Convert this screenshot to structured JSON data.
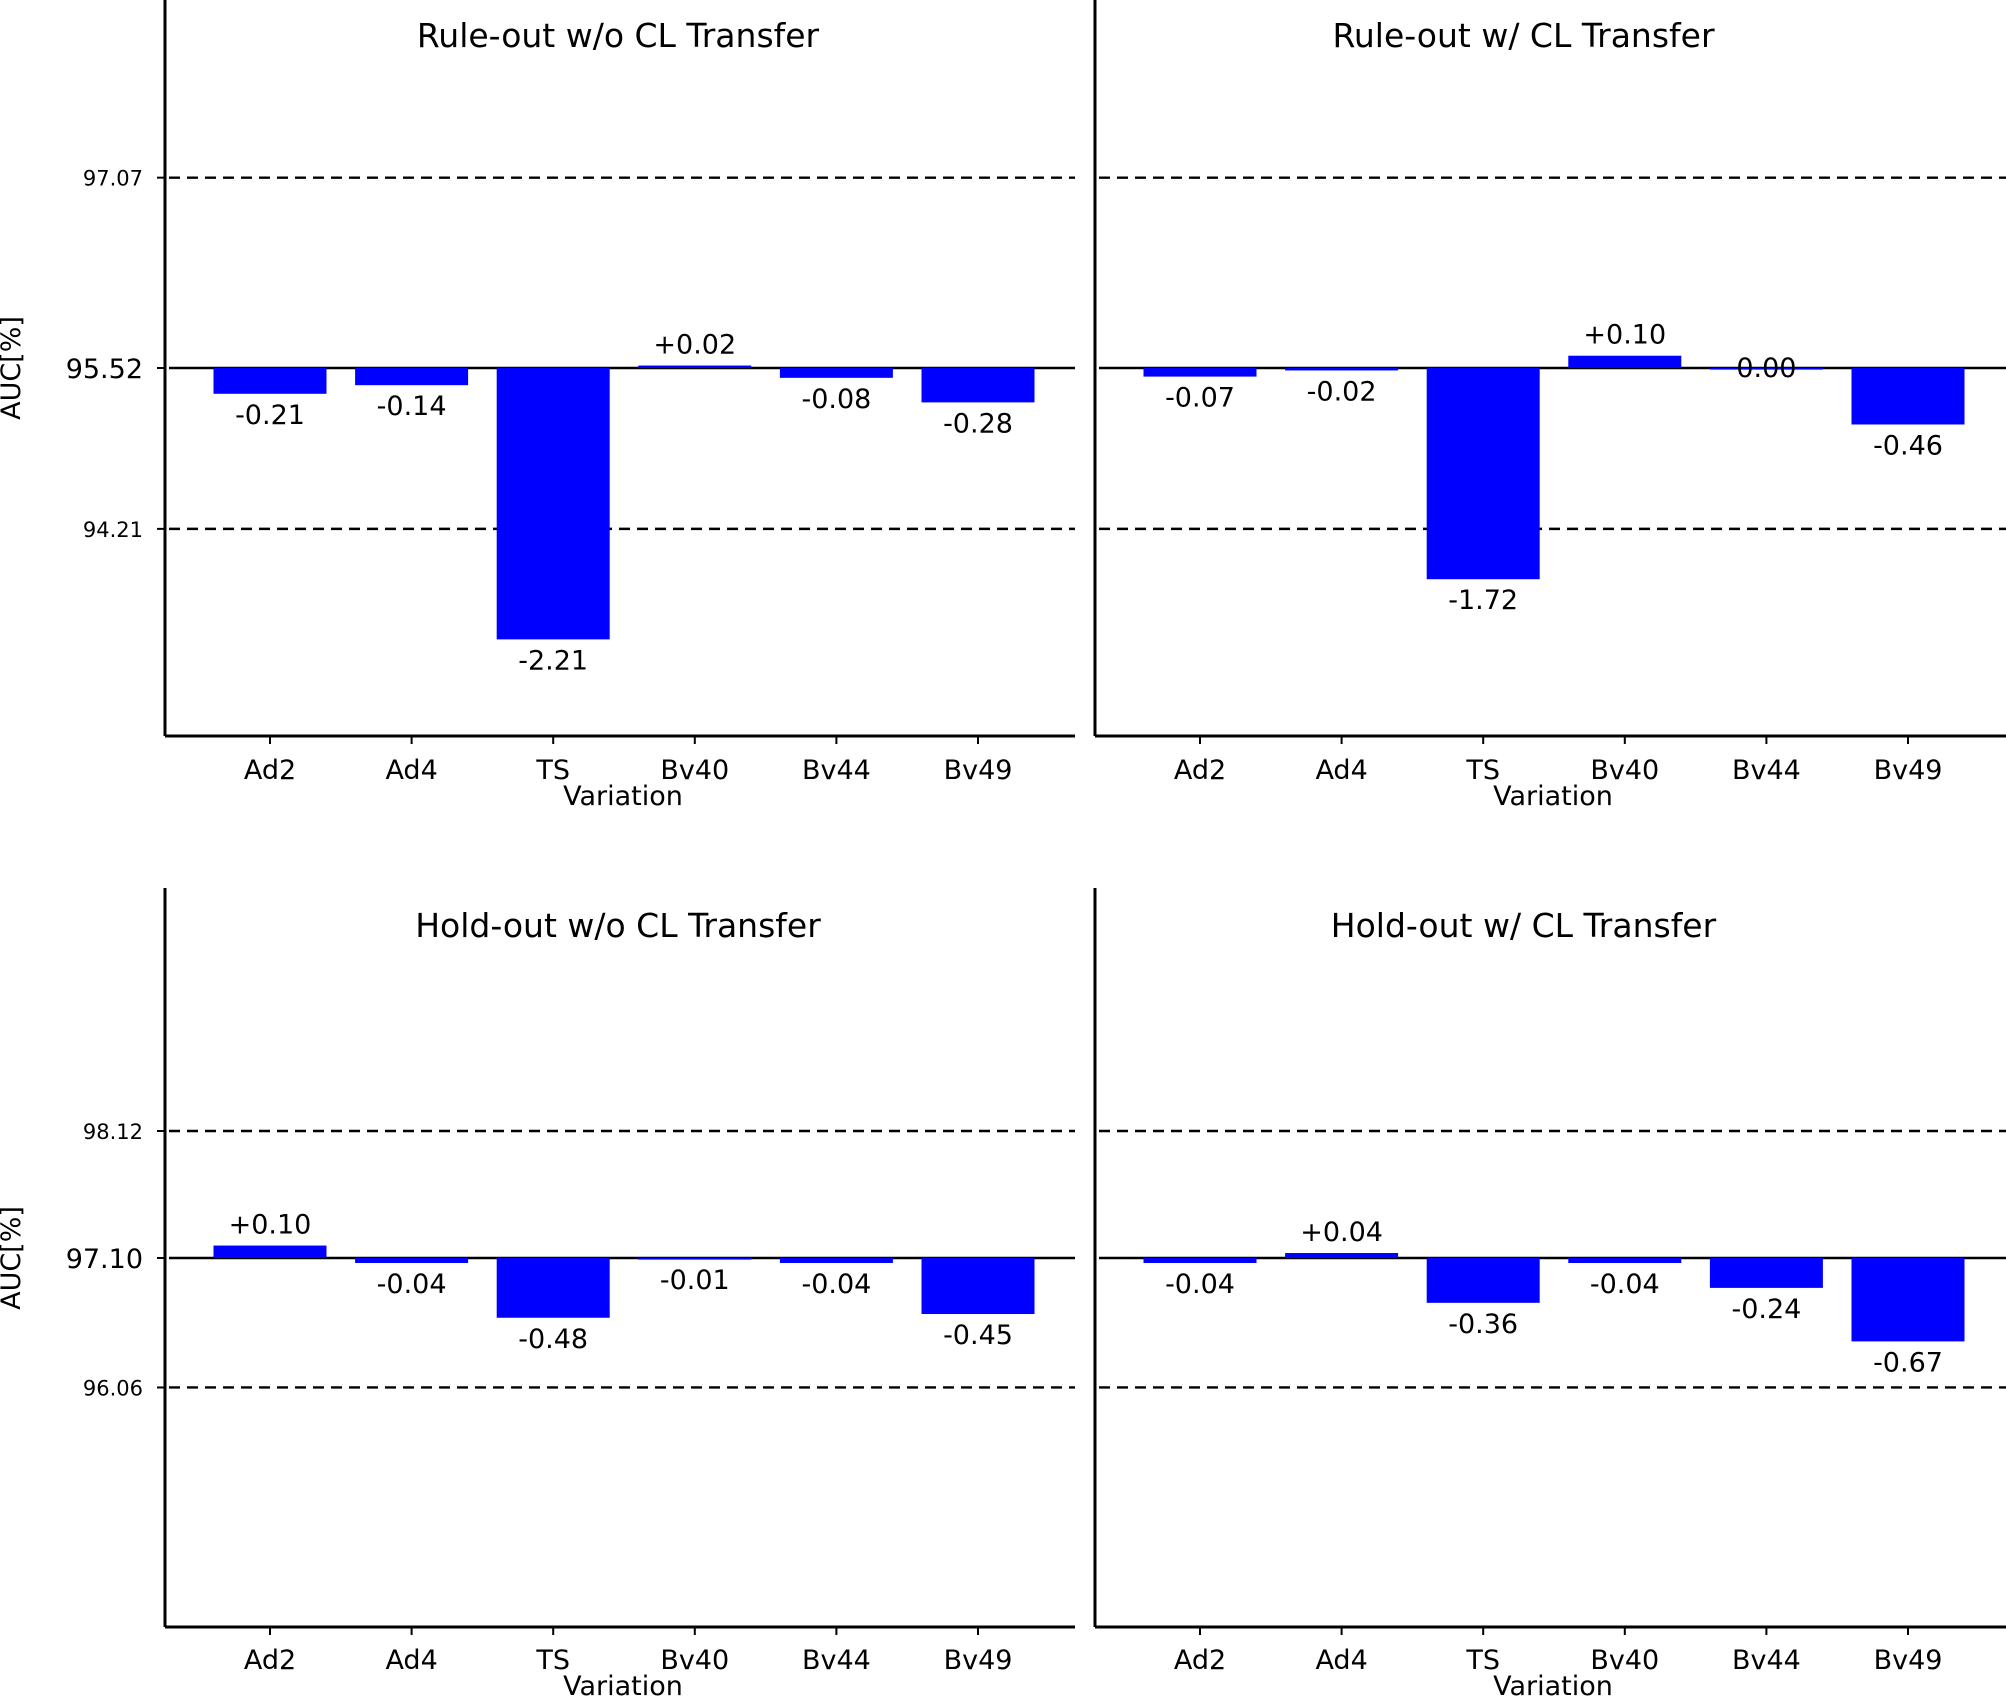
{
  "chart_data": [
    {
      "type": "bar",
      "title": "Rule-out w/o CL Transfer",
      "xlabel": "Variation",
      "ylabel": "AUC[%]",
      "baseline": 95.52,
      "baseline_label": "95.52",
      "reference_lines": [
        97.07,
        94.21
      ],
      "reference_labels": [
        "97.07",
        "94.21"
      ],
      "categories": [
        "Ad2",
        "Ad4",
        "TS",
        "Bv40",
        "Bv44",
        "Bv49"
      ],
      "values": [
        -0.21,
        -0.14,
        -2.21,
        0.02,
        -0.08,
        -0.28
      ],
      "value_labels": [
        "-0.21",
        "-0.14",
        "-2.21",
        "+0.02",
        "-0.08",
        "-0.28"
      ],
      "ylim": [
        92.5,
        98.5
      ]
    },
    {
      "type": "bar",
      "title": "Rule-out w/ CL Transfer",
      "xlabel": "Variation",
      "ylabel": "",
      "baseline": 95.52,
      "baseline_label": "",
      "reference_lines": [
        97.07,
        94.21
      ],
      "reference_labels": [],
      "categories": [
        "Ad2",
        "Ad4",
        "TS",
        "Bv40",
        "Bv44",
        "Bv49"
      ],
      "values": [
        -0.07,
        -0.02,
        -1.72,
        0.1,
        0.0,
        -0.46
      ],
      "value_labels": [
        "-0.07",
        "-0.02",
        "-1.72",
        "+0.10",
        "0.00",
        "-0.46"
      ],
      "ylim": [
        92.5,
        98.5
      ]
    },
    {
      "type": "bar",
      "title": "Hold-out w/o CL Transfer",
      "xlabel": "Variation",
      "ylabel": "AUC[%]",
      "baseline": 97.1,
      "baseline_label": "97.10",
      "reference_lines": [
        98.12,
        96.06
      ],
      "reference_labels": [
        "98.12",
        "96.06"
      ],
      "categories": [
        "Ad2",
        "Ad4",
        "TS",
        "Bv40",
        "Bv44",
        "Bv49"
      ],
      "values": [
        0.1,
        -0.04,
        -0.48,
        -0.01,
        -0.04,
        -0.45
      ],
      "value_labels": [
        "+0.10",
        "-0.04",
        "-0.48",
        "-0.01",
        "-0.04",
        "-0.45"
      ],
      "ylim": [
        94.1,
        100.0
      ]
    },
    {
      "type": "bar",
      "title": "Hold-out w/ CL Transfer",
      "xlabel": "Variation",
      "ylabel": "",
      "baseline": 97.1,
      "baseline_label": "",
      "reference_lines": [
        98.12,
        96.06
      ],
      "reference_labels": [],
      "categories": [
        "Ad2",
        "Ad4",
        "TS",
        "Bv40",
        "Bv44",
        "Bv49"
      ],
      "values": [
        -0.04,
        0.04,
        -0.36,
        -0.04,
        -0.24,
        -0.67
      ],
      "value_labels": [
        "-0.04",
        "+0.04",
        "-0.36",
        "-0.04",
        "-0.24",
        "-0.67"
      ],
      "ylim": [
        94.1,
        100.0
      ]
    }
  ],
  "colors": {
    "bar": "#0000ff",
    "line": "#000000",
    "background": "#ffffff"
  }
}
